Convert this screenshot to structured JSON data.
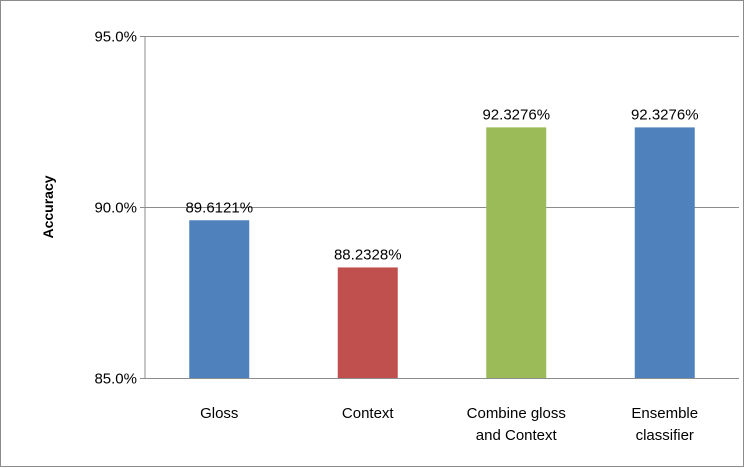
{
  "chart_data": {
    "type": "bar",
    "title": "",
    "xlabel": "",
    "ylabel": "Accuracy",
    "ylim": [
      85.0,
      95.0
    ],
    "yticks": [
      85.0,
      90.0,
      95.0
    ],
    "ytick_labels": [
      "85.0%",
      "90.0%",
      "95.0%"
    ],
    "grid": true,
    "legend": "none",
    "categories": [
      [
        "Gloss"
      ],
      [
        "Context"
      ],
      [
        "Combine gloss",
        "and Context"
      ],
      [
        "Ensemble",
        "classifier"
      ]
    ],
    "values": [
      89.6121,
      88.2328,
      92.3276,
      92.3276
    ],
    "data_labels": [
      "89.6121%",
      "88.2328%",
      "92.3276%",
      "92.3276%"
    ],
    "colors": [
      "#4F81BD",
      "#C0504D",
      "#9BBB59",
      "#4F81BD"
    ]
  }
}
